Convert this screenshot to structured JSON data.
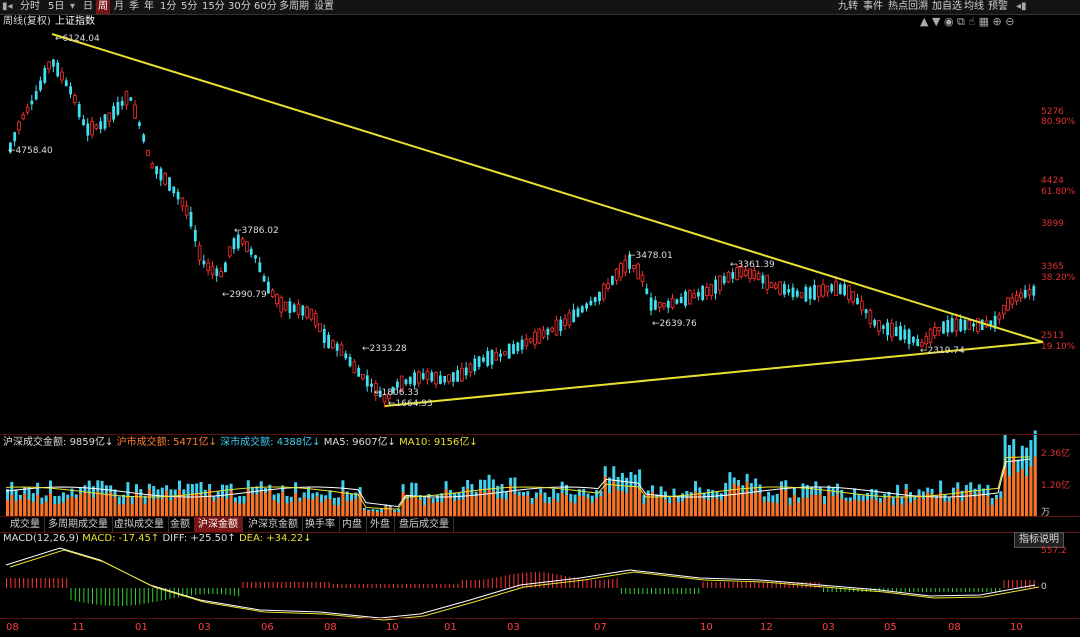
{
  "toolbar": {
    "left": [
      {
        "label": "分时"
      },
      {
        "label": "5日"
      },
      {
        "label": "日"
      },
      {
        "label": "周"
      },
      {
        "label": "月"
      },
      {
        "label": "季"
      },
      {
        "label": "年"
      },
      {
        "label": "1分"
      },
      {
        "label": "5分"
      },
      {
        "label": "15分"
      },
      {
        "label": "30分"
      },
      {
        "label": "60分"
      },
      {
        "label": "多周期"
      },
      {
        "label": "设置"
      }
    ],
    "active": "周",
    "right": [
      {
        "label": "九转"
      },
      {
        "label": "事件"
      },
      {
        "label": "热点回溯"
      },
      {
        "label": "加自选"
      },
      {
        "label": "均线"
      },
      {
        "label": "预警"
      }
    ]
  },
  "chart_header": {
    "mode": "周线(复权)",
    "index_name": "上证指数"
  },
  "price_labels": {
    "high": "6124.04",
    "p4758": "4758.40",
    "p3786": "3786.02",
    "p2990": "2990.79",
    "p2333": "2333.28",
    "p1806": "1806.33",
    "p1664": "1664.93",
    "p3478": "3478.01",
    "p2639": "2639.76",
    "p3361": "3361.39",
    "p2319": "2319.74"
  },
  "y_axis": [
    {
      "price": "5276",
      "pct": "80.90%"
    },
    {
      "price": "4424",
      "pct": "61.80%"
    },
    {
      "price": "3899",
      "pct": ""
    },
    {
      "price": "3365",
      "pct": "38.20%"
    },
    {
      "price": "2513",
      "pct": "19.10%"
    }
  ],
  "volume_header": {
    "title": "沪深成交金额:",
    "total": "9859亿↓",
    "sh": "沪市成交额: 5471亿↓",
    "sz": "深市成交额: 4388亿↓",
    "ma5": "MA5: 9607亿↓",
    "ma10": "MA10: 9156亿↓"
  },
  "volume_axis": [
    "2.36亿",
    "1.20亿",
    "万"
  ],
  "subtabs": [
    {
      "label": "成交量"
    },
    {
      "label": "多周期成交量"
    },
    {
      "label": "虚拟成交量"
    },
    {
      "label": "金额"
    },
    {
      "label": "沪深金额"
    },
    {
      "label": "沪深京金额"
    },
    {
      "label": "换手率"
    },
    {
      "label": "内盘"
    },
    {
      "label": "外盘"
    },
    {
      "label": "盘后成交量"
    }
  ],
  "subtab_active": "沪深金额",
  "macd_header": {
    "title": "MACD(12,26,9)",
    "macd": "MACD: -17.45↑",
    "diff": "DIFF: +25.50↑",
    "dea": "DEA: +34.22↓"
  },
  "macd_axis": [
    "557.2",
    "0"
  ],
  "indicator_button": "指标说明",
  "x_axis": [
    "08",
    "11",
    "01",
    "03",
    "06",
    "08",
    "10",
    "01",
    "03",
    "07",
    "10",
    "12",
    "03",
    "05",
    "08",
    "10"
  ],
  "colors": {
    "up": "#ff3030",
    "down": "#40e0f0",
    "trend": "#e8e030",
    "vol_down": "#40d0f0",
    "vol_up": "#ff7020"
  }
}
